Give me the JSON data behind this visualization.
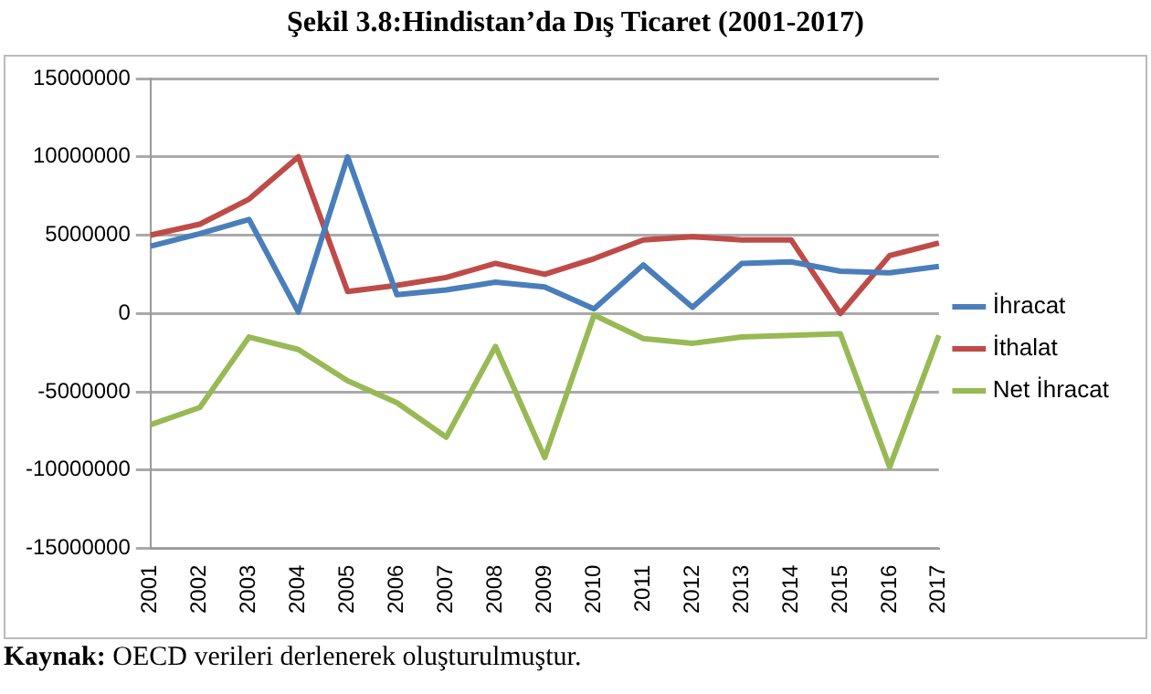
{
  "chart_data": {
    "type": "line",
    "title": "Şekil 3.8:Hindistan’da Dış Ticaret (2001-2017)",
    "categories": [
      "2001",
      "2002",
      "2003",
      "2004",
      "2005",
      "2006",
      "2007",
      "2008",
      "2009",
      "2010",
      "2011",
      "2012",
      "2013",
      "2014",
      "2015",
      "2016",
      "2017"
    ],
    "series": [
      {
        "name": "İhracat",
        "color": "#4a7ebb",
        "values": [
          4300000,
          5100000,
          6000000,
          100000,
          10000000,
          1200000,
          1500000,
          2000000,
          1700000,
          300000,
          3100000,
          400000,
          3200000,
          3300000,
          2700000,
          2600000,
          3000000
        ]
      },
      {
        "name": "İthalat",
        "color": "#be4b48",
        "values": [
          5000000,
          5700000,
          7300000,
          10000000,
          1400000,
          1800000,
          2300000,
          3200000,
          2500000,
          3500000,
          4700000,
          4900000,
          4700000,
          4700000,
          0,
          3700000,
          4500000
        ]
      },
      {
        "name": "Net İhracat",
        "color": "#98b954",
        "values": [
          -7100000,
          -6000000,
          -1500000,
          -2300000,
          -4300000,
          -5700000,
          -7900000,
          -2100000,
          -9200000,
          -100000,
          -1600000,
          -1900000,
          -1500000,
          -1400000,
          -1300000,
          -9800000,
          -1400000
        ]
      }
    ],
    "ylim": [
      -15000000,
      15000000
    ],
    "yticks": [
      -15000000,
      -10000000,
      -5000000,
      0,
      5000000,
      10000000,
      15000000
    ],
    "grid": "y",
    "legend": "right",
    "marker": "none",
    "line_style": "solid",
    "annotations": [
      "Kaynak: OECD verileri derlenerek oluşturulmuştur."
    ]
  }
}
